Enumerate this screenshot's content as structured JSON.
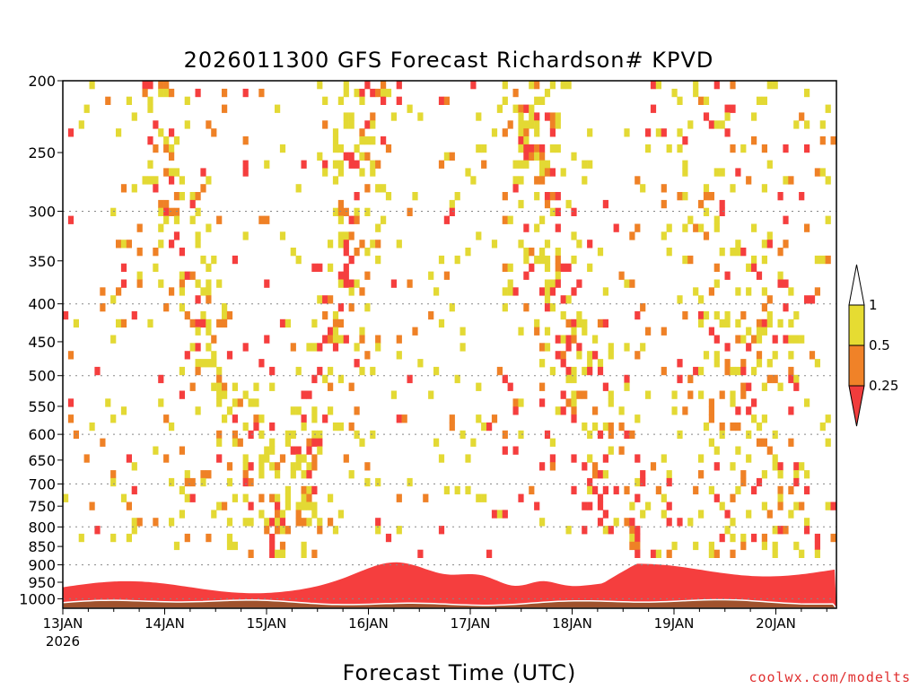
{
  "chart_data": {
    "type": "heatmap",
    "title": "2026011300 GFS Forecast Richardson# KPVD",
    "xlabel": "Forecast Time (UTC)",
    "ylabel": "",
    "y_axis": {
      "scale": "log",
      "reversed": true,
      "range": [
        200,
        1030
      ],
      "ticks": [
        200,
        250,
        300,
        350,
        400,
        450,
        500,
        550,
        600,
        650,
        700,
        750,
        800,
        850,
        900,
        950,
        1000
      ],
      "gridlines": [
        300,
        400,
        500,
        600,
        700,
        800,
        900,
        1000
      ]
    },
    "x_axis": {
      "range_days": [
        "13JAN 00Z",
        "20JAN 12Z"
      ],
      "ticks": [
        {
          "label": "13JAN",
          "sublabel": "2026",
          "day": 0
        },
        {
          "label": "14JAN",
          "sublabel": "",
          "day": 1
        },
        {
          "label": "15JAN",
          "sublabel": "",
          "day": 2
        },
        {
          "label": "16JAN",
          "sublabel": "",
          "day": 3
        },
        {
          "label": "17JAN",
          "sublabel": "",
          "day": 4
        },
        {
          "label": "18JAN",
          "sublabel": "",
          "day": 5
        },
        {
          "label": "19JAN",
          "sublabel": "",
          "day": 6
        },
        {
          "label": "20JAN",
          "sublabel": "",
          "day": 7
        }
      ]
    },
    "legend": {
      "placement": "right",
      "levels": [
        {
          "label": "1",
          "color": "#ffffff"
        },
        {
          "label": "0.5",
          "color": "#e6dc32"
        },
        {
          "label": "0.25",
          "color": "#f08228"
        },
        {
          "label": "",
          "color": "#f03c3c"
        }
      ],
      "boundary_labels": [
        "1",
        "0.5",
        "0.25"
      ]
    },
    "colors": {
      "below_025": "#f53e3e",
      "from_025_to_05": "#ef8126",
      "from_05_to_1": "#e3d934",
      "ground": "#a0522d"
    },
    "surface_layer_note": "Boundary layer (roughly 900-1000 hPa) mostly Ri < 0.25 throughout period, with surface terrain shading near 1000 hPa."
  },
  "credit": {
    "text": "coolwx.com/modelts",
    "color": "#e03030"
  }
}
